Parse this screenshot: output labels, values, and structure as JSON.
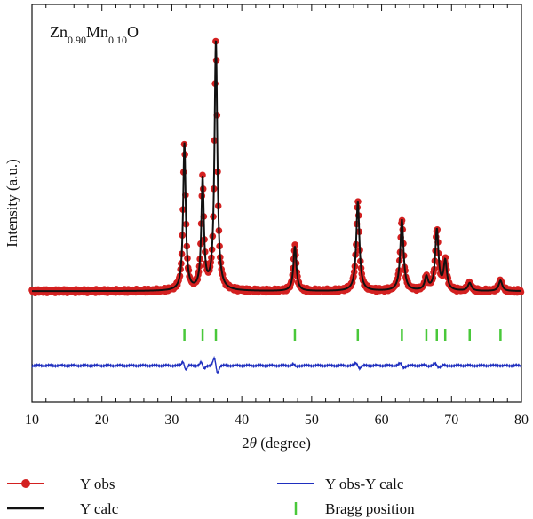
{
  "chart_data": {
    "type": "line",
    "annotation": {
      "base": "Zn",
      "sub1": "0.90",
      "mid": "Mn",
      "sub2": "0.10",
      "end": "O"
    },
    "xlabel": {
      "pre": "2",
      "theta": "θ",
      "post": " (degree)"
    },
    "ylabel": "Intensity (a.u.)",
    "xlim": [
      10,
      80
    ],
    "xticks": [
      "10",
      "20",
      "30",
      "40",
      "50",
      "60",
      "70",
      "80"
    ],
    "colors": {
      "obs": "#d32020",
      "calc": "#111111",
      "diff": "#1f2fbf",
      "bragg": "#49c83a"
    },
    "baseline": 0.05,
    "peaks": [
      {
        "x": 31.8,
        "height": 0.56,
        "width": 0.22
      },
      {
        "x": 34.4,
        "height": 0.42,
        "width": 0.22
      },
      {
        "x": 36.3,
        "height": 0.95,
        "width": 0.24
      },
      {
        "x": 47.6,
        "height": 0.17,
        "width": 0.25
      },
      {
        "x": 56.6,
        "height": 0.34,
        "width": 0.27
      },
      {
        "x": 62.9,
        "height": 0.27,
        "width": 0.28
      },
      {
        "x": 66.4,
        "height": 0.05,
        "width": 0.28
      },
      {
        "x": 67.9,
        "height": 0.23,
        "width": 0.28
      },
      {
        "x": 69.1,
        "height": 0.11,
        "width": 0.28
      },
      {
        "x": 72.6,
        "height": 0.03,
        "width": 0.3
      },
      {
        "x": 77.0,
        "height": 0.04,
        "width": 0.3
      }
    ],
    "bragg_positions": [
      31.8,
      34.4,
      36.3,
      47.6,
      56.6,
      62.9,
      66.4,
      67.9,
      69.1,
      72.6,
      77.0
    ],
    "legend": [
      "Y obs",
      "Y calc",
      "Y obs-Y calc",
      "Bragg position"
    ]
  }
}
